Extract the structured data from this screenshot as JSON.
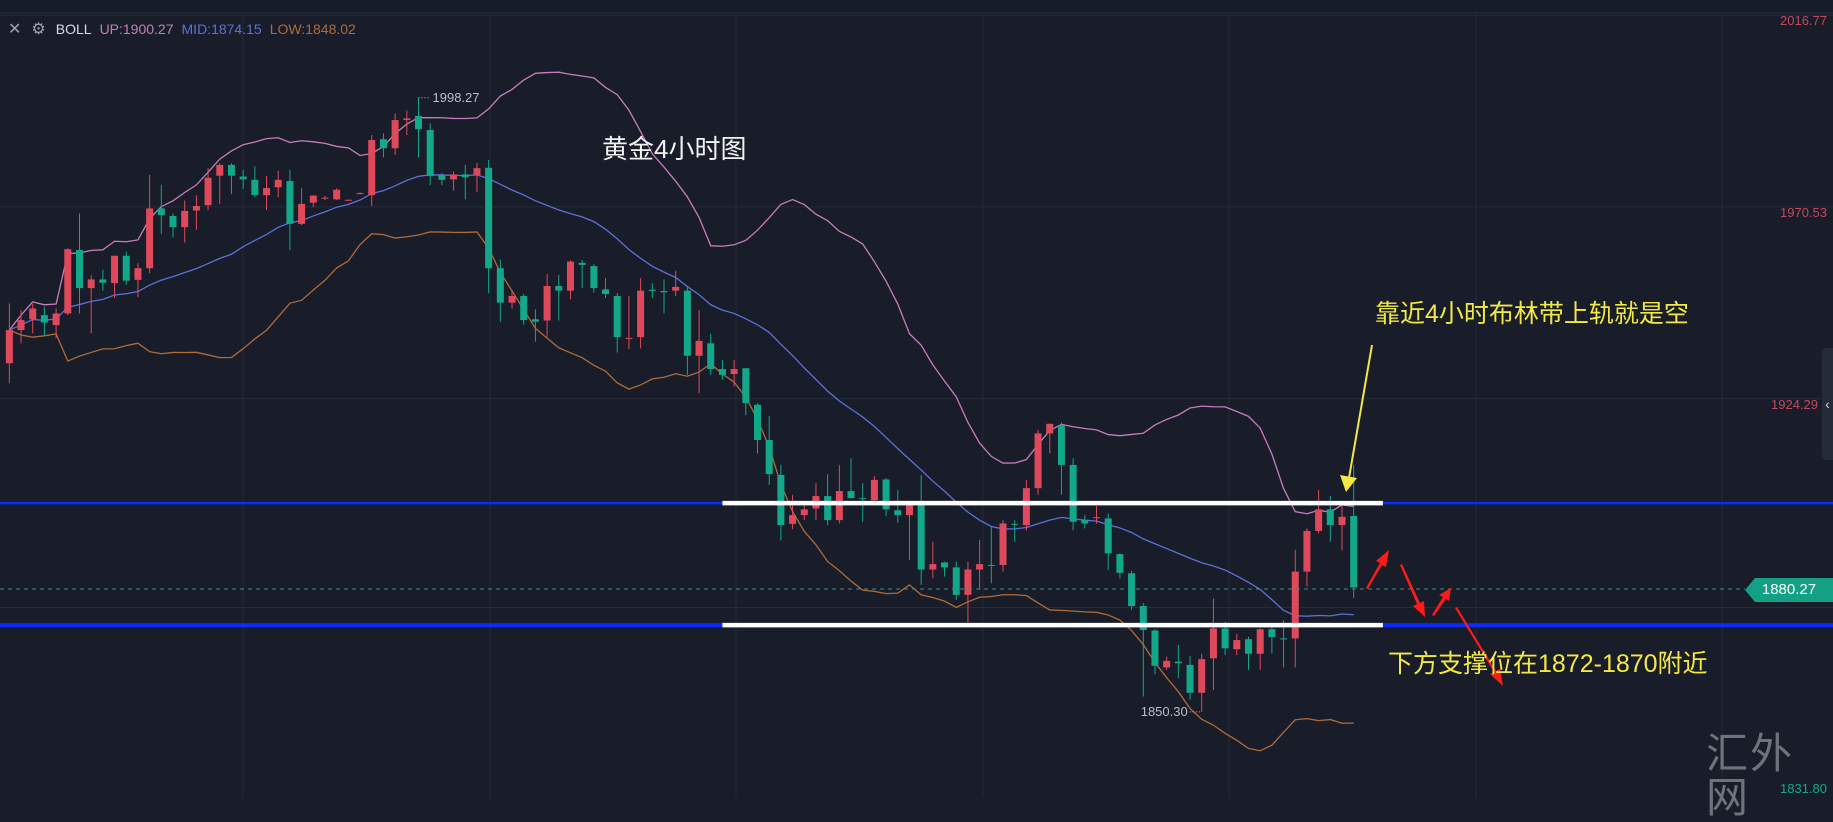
{
  "indicator": {
    "name": "BOLL",
    "up": "UP:1900.27",
    "mid": "MID:1874.15",
    "low": "LOW:1848.02",
    "close_icon": "close-x-icon",
    "settings_icon": "gear-icon"
  },
  "colors": {
    "background": "#181d29",
    "up_candle": "#e0495c",
    "down_candle": "#13a88a",
    "boll_up": "#c77dbb",
    "boll_mid": "#5d70d8",
    "boll_low": "#b06a3a",
    "horizontal_line": "#0a2cff",
    "zone_line": "#ffffff",
    "annotation": "#f3e945",
    "arrow_red": "#ff1a1a"
  },
  "title": "黄金4小时图",
  "annotations": {
    "upper": "靠近4小时布林带上轨就是空",
    "lower": "下方支撑位在1872-1870附近"
  },
  "watermark": "汇外网",
  "price_tag": "1880.27",
  "axis_labels": [
    {
      "text": "2016.77",
      "color": "#c5485e"
    },
    {
      "text": "1970.53",
      "color": "#c5485e"
    },
    {
      "text": "1924.29",
      "color": "#c5485e"
    },
    {
      "text": "1831.80",
      "color": "#13a88a"
    }
  ],
  "chart_data": {
    "type": "candlestick",
    "ylim": [
      1831.8,
      2016.77
    ],
    "y_ticks": [
      2016.77,
      1970.53,
      1924.29,
      1831.8
    ],
    "last_price": 1880.27,
    "indicator": "BOLL",
    "high_label": {
      "text": "1998.27",
      "index": 35,
      "value": 1998.27
    },
    "low_label": {
      "text": "1850.30",
      "index": 102,
      "value": 1850.3
    },
    "horizontal_lines": [
      1900.6,
      1871.2
    ],
    "zone_lines": [
      {
        "price": 1900.6,
        "from": 61,
        "to": 117.5
      },
      {
        "price": 1871.2,
        "from": 61,
        "to": 117.5
      }
    ],
    "candles": [
      [
        1934.3,
        1948.7,
        1929.5,
        1942.3
      ],
      [
        1942.3,
        1947.1,
        1939.1,
        1944.7
      ],
      [
        1944.9,
        1948.6,
        1941.5,
        1947.5
      ],
      [
        1945.9,
        1947.9,
        1940.9,
        1944.1
      ],
      [
        1943.5,
        1947.5,
        1940.3,
        1946.3
      ],
      [
        1946.3,
        1962.0,
        1945.9,
        1961.8
      ],
      [
        1961.6,
        1970.4,
        1946.3,
        1952.4
      ],
      [
        1952.4,
        1955.5,
        1941.5,
        1954.5
      ],
      [
        1954.5,
        1956.8,
        1951.8,
        1953.7
      ],
      [
        1953.6,
        1960.2,
        1950.0,
        1960.2
      ],
      [
        1960.2,
        1961.2,
        1953.2,
        1954.2
      ],
      [
        1954.4,
        1958.4,
        1950.2,
        1957.2
      ],
      [
        1957.2,
        1979.7,
        1956.0,
        1971.6
      ],
      [
        1971.6,
        1977.3,
        1965.5,
        1970.0
      ],
      [
        1969.8,
        1970.4,
        1964.6,
        1967.1
      ],
      [
        1967.1,
        1973.5,
        1963.4,
        1971.0
      ],
      [
        1971.1,
        1974.8,
        1966.4,
        1972.2
      ],
      [
        1972.4,
        1981.3,
        1971.2,
        1979.0
      ],
      [
        1979.5,
        1982.5,
        1972.7,
        1982.1
      ],
      [
        1982.1,
        1982.5,
        1975.1,
        1979.5
      ],
      [
        1979.3,
        1980.9,
        1976.3,
        1978.6
      ],
      [
        1978.5,
        1981.8,
        1974.3,
        1974.8
      ],
      [
        1974.8,
        1979.4,
        1971.2,
        1976.5
      ],
      [
        1976.7,
        1980.7,
        1974.3,
        1978.5
      ],
      [
        1978.2,
        1980.9,
        1961.6,
        1967.9
      ],
      [
        1967.9,
        1976.5,
        1967.6,
        1972.7
      ],
      [
        1973.0,
        1974.8,
        1971.9,
        1974.7
      ],
      [
        1974.0,
        1974.6,
        1973.6,
        1974.2
      ],
      [
        1973.8,
        1976.5,
        1973.6,
        1976.1
      ],
      [
        1973.6,
        1973.8,
        1973.4,
        1973.7
      ],
      [
        1975.2,
        1975.5,
        1975.0,
        1975.3
      ],
      [
        1974.8,
        1989.3,
        1972.2,
        1988.1
      ],
      [
        1988.3,
        1989.7,
        1983.9,
        1986.1
      ],
      [
        1986.1,
        1994.5,
        1984.5,
        1992.9
      ],
      [
        1992.9,
        1995.2,
        1989.3,
        1993.3
      ],
      [
        1993.9,
        1998.27,
        1983.9,
        1990.7
      ],
      [
        1990.5,
        1992.1,
        1977.2,
        1979.4
      ],
      [
        1979.6,
        1980.1,
        1977.2,
        1978.5
      ],
      [
        1978.6,
        1980.5,
        1975.9,
        1979.8
      ],
      [
        1979.8,
        1982.1,
        1973.8,
        1979.1
      ],
      [
        1979.7,
        1982.6,
        1975.6,
        1981.3
      ],
      [
        1981.4,
        1983.3,
        1951.2,
        1957.2
      ],
      [
        1957.2,
        1959.2,
        1944.3,
        1948.9
      ],
      [
        1948.9,
        1951.9,
        1947.5,
        1950.5
      ],
      [
        1950.5,
        1951.0,
        1943.6,
        1944.7
      ],
      [
        1944.9,
        1947.3,
        1939.5,
        1944.3
      ],
      [
        1944.6,
        1955.8,
        1940.7,
        1952.9
      ],
      [
        1952.9,
        1955.6,
        1944.6,
        1951.8
      ],
      [
        1951.8,
        1959.1,
        1949.7,
        1958.8
      ],
      [
        1958.5,
        1959.2,
        1952.4,
        1958.0
      ],
      [
        1957.7,
        1958.2,
        1951.3,
        1952.4
      ],
      [
        1952.1,
        1954.8,
        1950.0,
        1951.0
      ],
      [
        1950.5,
        1951.2,
        1936.9,
        1940.6
      ],
      [
        1940.2,
        1950.5,
        1937.7,
        1940.4
      ],
      [
        1940.6,
        1954.8,
        1937.9,
        1951.8
      ],
      [
        1952.0,
        1953.6,
        1950.0,
        1951.7
      ],
      [
        1951.7,
        1954.5,
        1946.3,
        1951.4
      ],
      [
        1951.8,
        1956.6,
        1950.5,
        1952.7
      ],
      [
        1951.8,
        1952.8,
        1931.5,
        1936.1
      ],
      [
        1936.1,
        1947.1,
        1927.1,
        1939.7
      ],
      [
        1939.1,
        1941.4,
        1931.5,
        1932.9
      ],
      [
        1932.9,
        1935.1,
        1930.3,
        1931.5
      ],
      [
        1931.7,
        1935.1,
        1928.7,
        1932.9
      ],
      [
        1933.1,
        1933.1,
        1921.8,
        1924.7
      ],
      [
        1924.3,
        1924.7,
        1912.6,
        1915.8
      ],
      [
        1915.8,
        1921.6,
        1905.0,
        1907.6
      ],
      [
        1907.4,
        1909.8,
        1891.6,
        1895.3
      ],
      [
        1895.6,
        1902.6,
        1894.3,
        1897.7
      ],
      [
        1897.7,
        1900.9,
        1896.5,
        1899.1
      ],
      [
        1899.3,
        1905.4,
        1896.5,
        1902.3
      ],
      [
        1902.3,
        1907.6,
        1895.3,
        1896.5
      ],
      [
        1896.5,
        1909.8,
        1895.7,
        1903.5
      ],
      [
        1903.5,
        1911.4,
        1901.8,
        1901.8
      ],
      [
        1901.8,
        1905.4,
        1896.1,
        1901.6
      ],
      [
        1901.3,
        1907.1,
        1900.9,
        1906.2
      ],
      [
        1906.3,
        1906.6,
        1897.5,
        1899.1
      ],
      [
        1898.9,
        1903.8,
        1895.9,
        1897.7
      ],
      [
        1897.7,
        1901.2,
        1886.9,
        1900.9
      ],
      [
        1900.5,
        1907.4,
        1880.9,
        1884.6
      ],
      [
        1884.6,
        1891.3,
        1882.5,
        1885.9
      ],
      [
        1886.3,
        1886.5,
        1882.9,
        1885.1
      ],
      [
        1885.1,
        1886.5,
        1877.3,
        1878.5
      ],
      [
        1878.5,
        1886.5,
        1871.8,
        1884.6
      ],
      [
        1884.6,
        1891.7,
        1879.7,
        1885.9
      ],
      [
        1885.7,
        1894.9,
        1881.3,
        1885.6
      ],
      [
        1885.7,
        1896.5,
        1884.1,
        1895.7
      ],
      [
        1895.6,
        1896.5,
        1891.3,
        1895.4
      ],
      [
        1895.3,
        1906.2,
        1894.0,
        1904.2
      ],
      [
        1904.2,
        1918.2,
        1902.6,
        1917.4
      ],
      [
        1917.4,
        1919.8,
        1912.6,
        1919.7
      ],
      [
        1919.4,
        1920.0,
        1902.6,
        1909.8
      ],
      [
        1909.8,
        1911.4,
        1894.1,
        1896.1
      ],
      [
        1896.5,
        1897.7,
        1894.5,
        1895.7
      ],
      [
        1897.1,
        1899.9,
        1895.7,
        1897.2
      ],
      [
        1896.9,
        1898.1,
        1884.5,
        1888.5
      ],
      [
        1888.3,
        1888.5,
        1882.5,
        1883.8
      ],
      [
        1883.7,
        1884.3,
        1874.9,
        1875.8
      ],
      [
        1875.8,
        1876.5,
        1854.0,
        1870.0
      ],
      [
        1869.9,
        1870.2,
        1859.4,
        1861.4
      ],
      [
        1861.0,
        1863.6,
        1860.4,
        1862.6
      ],
      [
        1862.4,
        1866.4,
        1858.4,
        1862.0
      ],
      [
        1861.6,
        1863.8,
        1853.2,
        1854.9
      ],
      [
        1854.9,
        1864.3,
        1850.3,
        1863.0
      ],
      [
        1863.2,
        1877.6,
        1855.6,
        1870.4
      ],
      [
        1870.4,
        1872.0,
        1864.0,
        1865.6
      ],
      [
        1865.4,
        1869.1,
        1864.0,
        1867.6
      ],
      [
        1867.8,
        1868.4,
        1860.4,
        1864.3
      ],
      [
        1864.3,
        1870.4,
        1860.4,
        1870.2
      ],
      [
        1870.2,
        1871.6,
        1864.4,
        1868.3
      ],
      [
        1868.0,
        1872.4,
        1861.0,
        1867.8
      ],
      [
        1868.0,
        1889.3,
        1861.0,
        1884.1
      ],
      [
        1884.1,
        1894.5,
        1880.5,
        1893.9
      ],
      [
        1893.9,
        1903.8,
        1893.3,
        1899.1
      ],
      [
        1899.1,
        1902.3,
        1891.3,
        1895.3
      ],
      [
        1895.3,
        1900.1,
        1889.2,
        1897.3
      ],
      [
        1897.5,
        1909.8,
        1877.7,
        1880.27
      ]
    ]
  }
}
